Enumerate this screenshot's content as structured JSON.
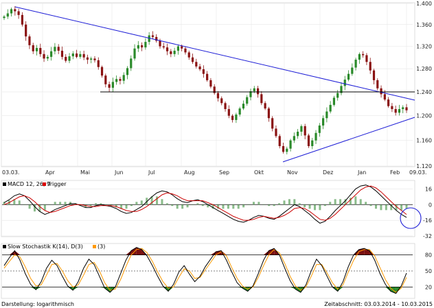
{
  "chart_data": [
    {
      "type": "candlestick",
      "pane": "price",
      "x_tick_labels": [
        "03.03.",
        "Apr",
        "Mai",
        "Jun",
        "Jul",
        "Aug",
        "Sep",
        "Okt",
        "Nov",
        "Dez",
        "Jan",
        "Feb",
        "09.03."
      ],
      "y_tick_labels": [
        "1.400",
        "1.360",
        "1.320",
        "1.280",
        "1.240",
        "1.200",
        "1.160",
        "1.120"
      ],
      "ylim": [
        1.12,
        1.4
      ],
      "y_scale": "log",
      "grid": true,
      "trendlines": [
        {
          "name": "",
          "color": "#1c1cd6",
          "from": {
            "x": "Anfang März 2014",
            "y": 1.393
          },
          "to": {
            "x": "09.03.",
            "y": 1.226
          }
        },
        {
          "name": "",
          "color": "#1c1cd6",
          "from": {
            "x": "Nov 2014",
            "y": 1.132
          },
          "to": {
            "x": "09.03.",
            "y": 1.199
          }
        },
        {
          "name": "",
          "color": "#000000",
          "from": {
            "x": "Mai 2014",
            "y": 1.241
          },
          "to": {
            "x": "09.03.",
            "y": 1.241
          }
        }
      ],
      "series_colors": {
        "up": "#2a8a2a",
        "down": "#8a1212"
      },
      "approx_closes": [
        1.375,
        1.381,
        1.389,
        1.385,
        1.378,
        1.36,
        1.338,
        1.322,
        1.311,
        1.317,
        1.306,
        1.298,
        1.301,
        1.311,
        1.319,
        1.312,
        1.301,
        1.294,
        1.302,
        1.307,
        1.301,
        1.306,
        1.3,
        1.296,
        1.298,
        1.295,
        1.283,
        1.268,
        1.253,
        1.247,
        1.257,
        1.262,
        1.259,
        1.269,
        1.281,
        1.298,
        1.316,
        1.322,
        1.318,
        1.328,
        1.34,
        1.337,
        1.33,
        1.32,
        1.318,
        1.311,
        1.306,
        1.312,
        1.32,
        1.316,
        1.309,
        1.3,
        1.292,
        1.284,
        1.279,
        1.271,
        1.26,
        1.249,
        1.238,
        1.229,
        1.221,
        1.211,
        1.2,
        1.193,
        1.202,
        1.212,
        1.22,
        1.231,
        1.241,
        1.246,
        1.236,
        1.221,
        1.212,
        1.196,
        1.179,
        1.167,
        1.151,
        1.142,
        1.147,
        1.16,
        1.167,
        1.174,
        1.183,
        1.168,
        1.151,
        1.16,
        1.172,
        1.184,
        1.196,
        1.207,
        1.218,
        1.23,
        1.238,
        1.25,
        1.261,
        1.271,
        1.282,
        1.296,
        1.306,
        1.304,
        1.292,
        1.277,
        1.26,
        1.246,
        1.236,
        1.227,
        1.216,
        1.211,
        1.205,
        1.211,
        1.214,
        1.209
      ]
    },
    {
      "type": "line",
      "pane": "macd",
      "legend": [
        "MACD 12, 26, 9",
        "Trigger"
      ],
      "y_tick_labels": [
        "16",
        "0",
        "-16",
        "-32"
      ],
      "ylim": [
        -32,
        24
      ],
      "series": [
        {
          "name": "MACD 12, 26, 9",
          "color": "#000000",
          "values": [
            2,
            5,
            9,
            11,
            9,
            4,
            -2,
            -7,
            -10,
            -8,
            -5,
            -3,
            -1,
            1,
            1,
            -1,
            -3,
            -3,
            -1,
            0,
            -1,
            -2,
            -4,
            -7,
            -9,
            -8,
            -5,
            -2,
            3,
            8,
            12,
            14,
            13,
            10,
            6,
            3,
            2,
            4,
            5,
            3,
            0,
            -3,
            -6,
            -9,
            -12,
            -15,
            -17,
            -18,
            -16,
            -13,
            -11,
            -12,
            -14,
            -15,
            -12,
            -8,
            -4,
            0,
            -2,
            -6,
            -10,
            -15,
            -19,
            -17,
            -12,
            -6,
            -1,
            4,
            10,
            16,
            19,
            20,
            18,
            14,
            9,
            4,
            -1,
            -6,
            -10,
            -13
          ]
        },
        {
          "name": "Trigger",
          "color": "#cc0000",
          "values": [
            0,
            2,
            5,
            8,
            9,
            7,
            3,
            -2,
            -6,
            -8,
            -7,
            -5,
            -3,
            -1,
            0,
            0,
            -1,
            -2,
            -2,
            -1,
            -1,
            -1,
            -2,
            -4,
            -6,
            -7,
            -7,
            -5,
            -2,
            2,
            6,
            10,
            12,
            11,
            9,
            6,
            4,
            4,
            4,
            4,
            2,
            0,
            -3,
            -6,
            -9,
            -12,
            -14,
            -16,
            -16,
            -15,
            -13,
            -12,
            -13,
            -14,
            -13,
            -11,
            -8,
            -4,
            -3,
            -4,
            -7,
            -11,
            -15,
            -16,
            -14,
            -10,
            -5,
            0,
            5,
            10,
            15,
            18,
            19,
            17,
            13,
            8,
            3,
            -2,
            -6,
            -10
          ]
        }
      ]
    },
    {
      "type": "line",
      "pane": "stochastic",
      "legend": [
        "Slow Stochastik K(14), D(3)",
        "(3)"
      ],
      "y_tick_labels": [
        "80",
        "50",
        "20"
      ],
      "ylim": [
        0,
        100
      ],
      "reference_lines": [
        80,
        50,
        20
      ],
      "series": [
        {
          "name": "Slow Stochastik K(14), D(3)",
          "color": "#000000",
          "values": [
            60,
            75,
            88,
            70,
            45,
            25,
            15,
            30,
            55,
            70,
            60,
            40,
            22,
            14,
            30,
            55,
            72,
            62,
            40,
            18,
            10,
            20,
            45,
            70,
            88,
            94,
            90,
            78,
            60,
            40,
            22,
            12,
            25,
            48,
            60,
            44,
            30,
            40,
            58,
            72,
            86,
            88,
            70,
            48,
            28,
            18,
            12,
            22,
            45,
            70,
            88,
            92,
            80,
            55,
            32,
            16,
            10,
            24,
            50,
            72,
            60,
            40,
            20,
            12,
            30,
            58,
            80,
            90,
            92,
            88,
            70,
            45,
            25,
            12,
            8,
            22,
            46
          ]
        },
        {
          "name": "(3)",
          "color": "#ff9900",
          "values": [
            55,
            68,
            80,
            76,
            58,
            36,
            22,
            24,
            42,
            62,
            64,
            50,
            32,
            20,
            24,
            42,
            62,
            66,
            50,
            28,
            14,
            16,
            34,
            58,
            80,
            90,
            92,
            84,
            68,
            48,
            30,
            18,
            20,
            38,
            54,
            50,
            36,
            38,
            52,
            66,
            80,
            86,
            78,
            56,
            36,
            22,
            16,
            20,
            38,
            60,
            80,
            90,
            84,
            64,
            40,
            22,
            14,
            20,
            40,
            62,
            62,
            46,
            28,
            16,
            24,
            48,
            70,
            86,
            90,
            90,
            78,
            56,
            34,
            18,
            10,
            18,
            38
          ]
        }
      ]
    }
  ],
  "footer": {
    "display_mode": "Darstellung: logarithmisch",
    "period": "Zeitabschnitt: 03.03.2014 - 10.03.2015"
  },
  "legend_colors": {
    "macd_box": "#000000",
    "trigger_box": "#dd0000",
    "stoch_k_box": "#000000",
    "stoch_d_box": "#ff9900"
  }
}
